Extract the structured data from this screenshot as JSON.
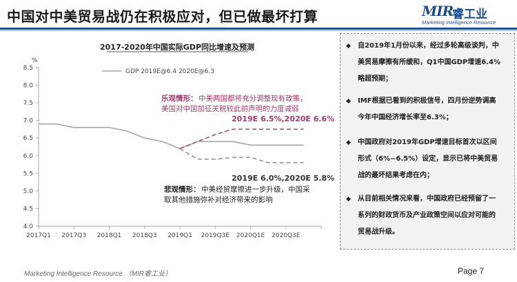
{
  "header": {
    "title": "中国对中美贸易战仍在积极应对，但已做最坏打算",
    "logo_mark_prefix": "M",
    "logo_mark_suffix": "IR",
    "logo_cn": "睿工业",
    "logo_tagline": "Marketing Intelligence Resource"
  },
  "chart_data": {
    "type": "line",
    "title": "2017-2020年中国实际GDP同比增速及预测",
    "ylabel": "%",
    "ylim": [
      4.0,
      8.5
    ],
    "yticks": [
      "8.5",
      "8.0",
      "7.5",
      "7.0",
      "6.5",
      "6.0",
      "5.5",
      "5.0",
      "4.5",
      "4.0"
    ],
    "categories": [
      "2017Q1",
      "2017Q3",
      "2018Q1",
      "2018Q3",
      "2019Q1",
      "2019Q3E",
      "2020Q1E",
      "2020Q3E"
    ],
    "legend": "GDP  2019E@6.4 2020E@6.3",
    "legend_position": "top-left",
    "grid": false,
    "colors": {
      "base": "#a6a6a6",
      "optimistic": "#a33b6b",
      "pessimistic": "#8c8c8c"
    },
    "series": [
      {
        "name": "GDP  2019E@6.4 2020E@6.3",
        "style": "solid",
        "x": [
          0,
          0.5,
          1,
          1.5,
          2,
          2.5,
          3,
          3.5,
          4,
          4.5,
          5,
          5.5,
          6,
          6.5,
          7,
          7.5
        ],
        "values": [
          6.9,
          6.9,
          6.8,
          6.8,
          6.8,
          6.7,
          6.5,
          6.4,
          6.2,
          6.4,
          6.4,
          6.4,
          6.3,
          6.3,
          6.3,
          6.3
        ]
      },
      {
        "name": "",
        "style": "dashed",
        "x": [
          4,
          4.5,
          5,
          5.5,
          6,
          6.5,
          7,
          7.5
        ],
        "values": [
          6.2,
          6.4,
          6.6,
          6.75,
          6.75,
          6.75,
          6.75,
          6.75
        ]
      },
      {
        "name": "",
        "style": "dashed",
        "x": [
          4,
          4.5,
          5,
          5.5,
          6,
          6.5,
          7,
          7.5
        ],
        "values": [
          6.2,
          5.9,
          5.9,
          5.95,
          5.95,
          5.8,
          5.8,
          5.8
        ]
      }
    ],
    "annotations": {
      "optimistic_head": "乐观情形：",
      "optimistic_line1": "中美两国都将充分调整现有政策，",
      "optimistic_line2": "美国对中国加征关税较此前声明的力度减弱",
      "optimistic_forecast": "2019E 6.5%,2020E 6.6%",
      "pessimistic_forecast": "2019E 6.0%,2020E 5.8%",
      "pessimistic_head": "悲观情形：",
      "pessimistic_line1": "中美经贸摩擦进一步升级，中国采",
      "pessimistic_line2": "取其他措施弥补对经济带来的影响"
    }
  },
  "panel": {
    "bullets": [
      {
        "lines": [
          "自2019年1月份以来，经过多轮高级谈判，中",
          "美贸易摩擦有所缓和，Q1中国GDP增速6.4%",
          "略超预期；"
        ]
      },
      {
        "lines": [
          "IMF根据已看到的积极信号，四月份逆势调高",
          "今年中国经济增长率至6.3%；"
        ]
      },
      {
        "lines": [
          "中国政府对2019年GDP增速目标首次以区间",
          "形式（6%~6.5%）设定，显示已将中美贸易",
          "战的最坏结果考虑在内；"
        ]
      },
      {
        "lines": [
          "从目前相关情况来看，中国政府已经预留了一",
          "系列的财政货币及产业政策空间以应对可能的",
          "贸易战升级。"
        ]
      }
    ]
  },
  "footer": {
    "left": "Marketing Intelligence Resource （MIR睿工业）",
    "right": "Page 7"
  }
}
